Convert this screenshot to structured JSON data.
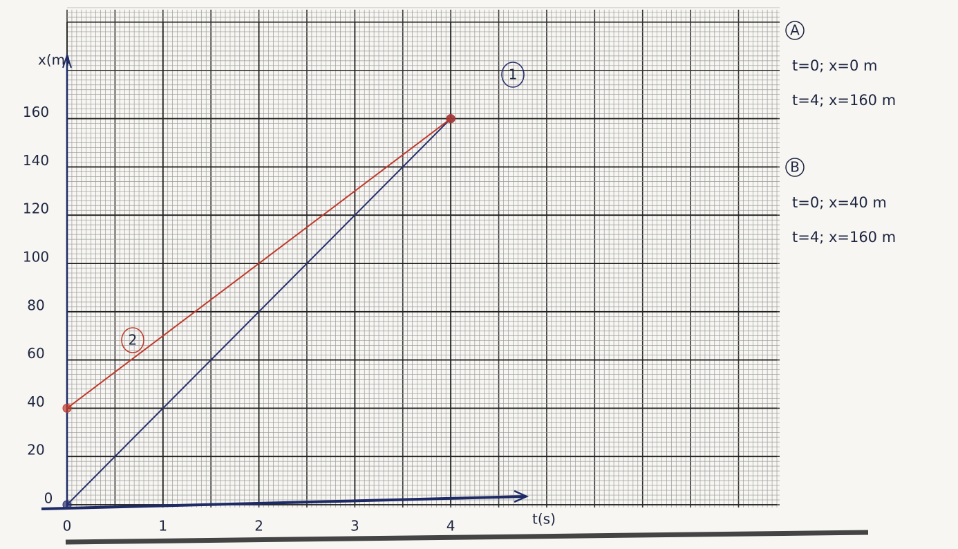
{
  "chart_data": {
    "type": "line",
    "x_label": "t(s)",
    "y_label": "x(m)",
    "x": [
      0,
      4
    ],
    "series": [
      {
        "name": "1",
        "color": "#27306e",
        "values": [
          0,
          160
        ]
      },
      {
        "name": "2",
        "color": "#c0392b",
        "values": [
          40,
          160
        ]
      }
    ],
    "xlim": [
      0,
      7.4
    ],
    "ylim": [
      0,
      200
    ],
    "xticks": [
      0,
      1,
      2,
      3,
      4
    ],
    "yticks": [
      0,
      20,
      40,
      60,
      80,
      100,
      120,
      140,
      160
    ],
    "grid": true,
    "annotations": [
      {
        "label": "A",
        "lines": [
          "t=0; x=0 m",
          "t=4; x=160 m"
        ]
      },
      {
        "label": "B",
        "lines": [
          "t=0; x=40 m",
          "t=4; x=160 m"
        ]
      }
    ]
  }
}
